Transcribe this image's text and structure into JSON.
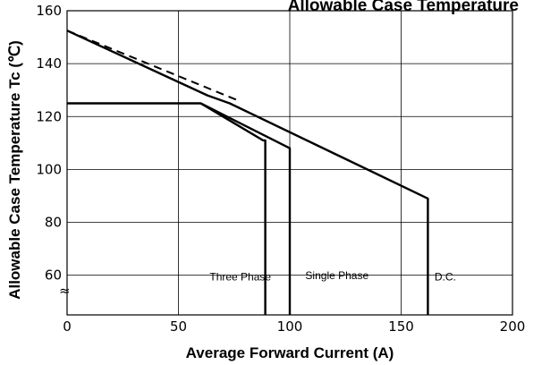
{
  "chart_data": {
    "type": "line",
    "title": "Allowable Case Temperature",
    "xlabel": "Average Forward Current (A)",
    "ylabel": "Allowable Case Temperature Tc (℃)",
    "xlim": [
      0,
      200
    ],
    "ylim": [
      45,
      160
    ],
    "x_ticks": [
      "0",
      "50",
      "100",
      "150",
      "200"
    ],
    "y_ticks": [
      "160",
      "140",
      "120",
      "100",
      "80",
      "60"
    ],
    "axis_break_marker": "≈",
    "grid": true,
    "series": [
      {
        "name": "Three Phase",
        "style": "solid",
        "x": [
          0,
          60,
          88,
          89,
          89
        ],
        "y": [
          125,
          125,
          111,
          111,
          45
        ]
      },
      {
        "name": "Single Phase",
        "style": "solid",
        "x": [
          60,
          100,
          100
        ],
        "y": [
          125,
          108,
          45
        ]
      },
      {
        "name": "D.C.",
        "style": "solid",
        "x": [
          0,
          63,
          73,
          162,
          162
        ],
        "y": [
          152.5,
          128,
          125,
          89,
          45
        ]
      },
      {
        "name": "",
        "style": "dashed",
        "x": [
          0,
          77
        ],
        "y": [
          152.5,
          126
        ]
      }
    ],
    "annotations": [
      {
        "text": "Three Phase",
        "x": 64,
        "y": 58
      },
      {
        "text": "Single Phase",
        "x": 107,
        "y": 58.5
      },
      {
        "text": "D.C.",
        "x": 165,
        "y": 58
      }
    ]
  }
}
